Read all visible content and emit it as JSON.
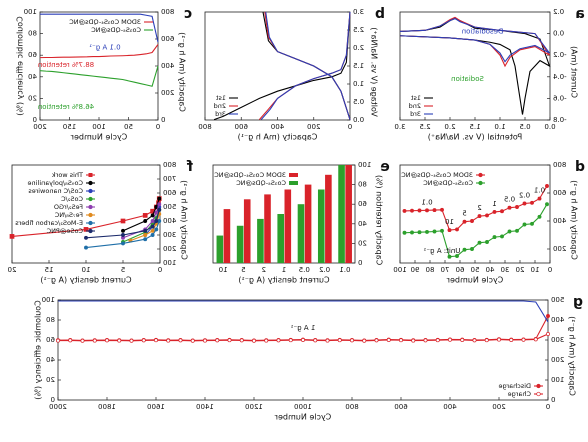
{
  "chart_data": [
    {
      "label": "a",
      "type": "line",
      "xlabel": "Potential (V vs. Na/Na⁺)",
      "ylabel": "Current (mA)",
      "xlim": [
        0,
        3
      ],
      "xticks": [
        {
          "value": 0,
          "label": "0.0"
        },
        0.5,
        {
          "value": 1,
          "label": "1.0"
        },
        1.5,
        {
          "value": 2,
          "label": "2.0"
        },
        2.5,
        {
          "value": 3,
          "label": "3.0"
        }
      ],
      "ylim": [
        -0.8,
        0.2
      ],
      "yticks": [
        -0.8,
        -0.6,
        -0.4,
        -0.2,
        {
          "value": 0,
          "label": "0.0"
        },
        0.2
      ],
      "annotations": [
        "Desodiation",
        "Sodiation"
      ],
      "legend": "lower right",
      "series": [
        {
          "name": "1st",
          "color": "#000000",
          "x": [
            3.0,
            2.5,
            2.0,
            1.5,
            1.2,
            1.0,
            0.8,
            0.7,
            0.6,
            0.55,
            0.5,
            0.4,
            0.2,
            0.01,
            0.2,
            0.5,
            1.0,
            1.5,
            1.8,
            1.9,
            2.0,
            2.2,
            2.5,
            3.0
          ],
          "values": [
            -0.02,
            -0.03,
            -0.04,
            -0.06,
            -0.08,
            -0.1,
            -0.15,
            -0.3,
            -0.6,
            -0.75,
            -0.6,
            -0.35,
            -0.25,
            -0.3,
            -0.05,
            0.0,
            0.03,
            0.05,
            0.12,
            0.14,
            0.12,
            0.06,
            0.03,
            0.02
          ]
        },
        {
          "name": "2nd",
          "color": "#d9232a",
          "x": [
            3.0,
            2.0,
            1.5,
            1.2,
            1.0,
            0.9,
            0.8,
            0.6,
            0.3,
            0.01,
            0.3,
            1.0,
            1.5,
            1.8,
            1.9,
            2.0,
            2.2,
            2.5,
            3.0
          ],
          "values": [
            -0.02,
            -0.04,
            -0.06,
            -0.1,
            -0.2,
            -0.3,
            -0.22,
            -0.15,
            -0.12,
            -0.2,
            0.0,
            0.03,
            0.06,
            0.12,
            0.15,
            0.13,
            0.07,
            0.03,
            0.02
          ]
        },
        {
          "name": "3rd",
          "color": "#2b3fb8",
          "x": [
            3.0,
            2.0,
            1.5,
            1.2,
            1.0,
            0.9,
            0.8,
            0.6,
            0.3,
            0.01,
            0.3,
            1.0,
            1.5,
            1.8,
            1.9,
            2.0,
            2.2,
            2.5,
            3.0
          ],
          "values": [
            -0.02,
            -0.04,
            -0.06,
            -0.1,
            -0.18,
            -0.26,
            -0.2,
            -0.14,
            -0.11,
            -0.18,
            0.0,
            0.03,
            0.06,
            0.11,
            0.14,
            0.12,
            0.07,
            0.03,
            0.02
          ]
        }
      ]
    },
    {
      "label": "b",
      "type": "line",
      "xlabel": "Capacity (mA h g⁻¹)",
      "ylabel": "Voltage (V vs. Na/Na⁺)",
      "xlim": [
        0,
        800
      ],
      "xticks": [
        0,
        200,
        400,
        600,
        800
      ],
      "ylim": [
        0,
        3
      ],
      "yticks": [
        {
          "value": 0,
          "label": "0.0"
        },
        0.5,
        {
          "value": 1,
          "label": "1.0"
        },
        1.5,
        {
          "value": 2,
          "label": "2.0"
        },
        2.5,
        {
          "value": 3,
          "label": "3.0"
        }
      ],
      "legend": "lower right",
      "series": [
        {
          "name": "1st",
          "color": "#000000",
          "x": [
            0,
            20,
            50,
            100,
            200,
            300,
            400,
            500,
            600,
            700,
            750,
            null,
            0,
            50,
            100,
            200,
            300,
            400,
            450,
            480
          ],
          "values": [
            3.0,
            1.6,
            1.3,
            1.2,
            1.1,
            0.95,
            0.8,
            0.6,
            0.35,
            0.1,
            0.01,
            null,
            0.01,
            0.8,
            1.2,
            1.5,
            1.7,
            1.9,
            2.2,
            3.0
          ]
        },
        {
          "name": "2nd",
          "color": "#d9232a",
          "x": [
            0,
            20,
            50,
            100,
            200,
            300,
            400,
            450,
            500,
            null,
            0,
            50,
            100,
            200,
            300,
            400,
            450,
            470
          ],
          "values": [
            3.0,
            1.8,
            1.4,
            1.3,
            1.15,
            0.95,
            0.6,
            0.3,
            0.01,
            null,
            0.01,
            0.8,
            1.2,
            1.5,
            1.7,
            1.9,
            2.3,
            3.0
          ]
        },
        {
          "name": "3rd",
          "color": "#2b3fb8",
          "x": [
            0,
            20,
            50,
            100,
            200,
            300,
            400,
            440,
            490,
            null,
            0,
            50,
            100,
            200,
            300,
            400,
            445,
            465
          ],
          "values": [
            3.0,
            1.8,
            1.4,
            1.3,
            1.15,
            0.95,
            0.6,
            0.3,
            0.01,
            null,
            0.01,
            0.8,
            1.2,
            1.5,
            1.7,
            1.9,
            2.3,
            3.0
          ]
        }
      ]
    },
    {
      "label": "c",
      "type": "line",
      "xlabel": "Cycle Number",
      "ylabel": "Capacity (mA h g⁻¹)",
      "y2label": "Coulombic efficiency (%)",
      "xlim": [
        0,
        200
      ],
      "xticks": [
        0,
        50,
        100,
        150,
        200
      ],
      "ylim": [
        0,
        800
      ],
      "yticks": [
        0,
        200,
        400,
        600,
        800
      ],
      "y2lim": [
        0,
        100
      ],
      "y2ticks": [
        0,
        20,
        40,
        60,
        80,
        100
      ],
      "annotations": [
        "88.7% retention",
        "46.8% retention",
        "0.1 A g⁻¹"
      ],
      "legend": "upper left",
      "x": [
        0,
        10,
        20,
        30,
        40,
        50,
        60,
        70,
        80,
        90,
        100,
        110,
        120,
        130,
        140,
        150,
        160,
        170,
        180,
        190,
        200
      ],
      "series": [
        {
          "name": "3DOM Co₃S₄-QDs@NC",
          "color": "#d9232a",
          "values": [
            560,
            500,
            490,
            485,
            480,
            478,
            476,
            475,
            474,
            472,
            470,
            470,
            468,
            467,
            466,
            465,
            465,
            464,
            463,
            463,
            462
          ]
        },
        {
          "name": "Co₃S₄-QDs@NC",
          "color": "#2ca02c",
          "values": [
            400,
            250,
            260,
            270,
            280,
            290,
            300,
            305,
            310,
            315,
            320,
            325,
            330,
            335,
            340,
            345,
            350,
            355,
            360,
            362,
            365
          ]
        },
        {
          "color": "#2b3fb8",
          "axis": "y2",
          "values": [
            72,
            96,
            97,
            98,
            98,
            98,
            98,
            98,
            98,
            98,
            98,
            98,
            98,
            98,
            98,
            98,
            98,
            98,
            98,
            98,
            98
          ]
        }
      ]
    },
    {
      "label": "d",
      "type": "line",
      "xlabel": "Cycle Number",
      "ylabel": "Capacity (mA h g⁻¹)",
      "xlim": [
        0,
        100
      ],
      "xticks": [
        0,
        10,
        20,
        30,
        40,
        50,
        60,
        70,
        80,
        90,
        100
      ],
      "ylim": [
        100,
        800
      ],
      "yticks": [
        200,
        400,
        600,
        800
      ],
      "annotations": [
        "0.1",
        "0.2",
        "0.5",
        "1",
        "2",
        "5",
        "10",
        "0.1",
        "Unit: A g⁻¹"
      ],
      "legend": "upper right",
      "x": [
        2,
        7,
        12,
        17,
        22,
        27,
        32,
        37,
        42,
        47,
        52,
        57,
        62,
        67,
        72,
        77,
        82,
        87,
        92,
        97
      ],
      "series": [
        {
          "name": "3DOM Co₃S₄-QDs@NC",
          "color": "#d9232a",
          "marker": "circle",
          "values": [
            650,
            560,
            530,
            525,
            500,
            495,
            470,
            465,
            440,
            435,
            400,
            395,
            340,
            335,
            480,
            478,
            476,
            475,
            474,
            472
          ]
        },
        {
          "name": "Co₃S₄-QDs@NC",
          "color": "#2ca02c",
          "marker": "circle",
          "values": [
            520,
            430,
            380,
            375,
            330,
            325,
            290,
            285,
            250,
            245,
            200,
            195,
            150,
            145,
            330,
            325,
            322,
            320,
            318,
            316
          ]
        }
      ]
    },
    {
      "label": "e",
      "type": "bar",
      "xlabel": "Current density (A g⁻¹)",
      "ylabel": "Capacity retention (%)",
      "categories": [
        "0.1",
        "0.2",
        "0.5",
        "1",
        "2",
        "5",
        "10"
      ],
      "ylim": [
        0,
        100
      ],
      "yticks": [
        0,
        20,
        40,
        60,
        80,
        100
      ],
      "legend": "upper right",
      "series": [
        {
          "name": "3DOM Co₃S₄-QDs@NC",
          "color": "#d9232a",
          "values": [
            100,
            90,
            80,
            75,
            70,
            65,
            55
          ]
        },
        {
          "name": "Co₃S₄-QDs@NC",
          "color": "#2ca02c",
          "values": [
            100,
            75,
            60,
            50,
            45,
            38,
            28
          ]
        }
      ]
    },
    {
      "label": "f",
      "type": "line",
      "xlabel": "Current density (A g⁻¹)",
      "ylabel": "Capacity (mA h g⁻¹)",
      "xlim": [
        0,
        20
      ],
      "xticks": [
        0,
        5,
        10,
        15,
        20
      ],
      "ylim": [
        100,
        800
      ],
      "yticks": [
        100,
        200,
        300,
        400,
        500,
        600,
        700,
        800
      ],
      "legend": "upper right",
      "series": [
        {
          "name": "This work",
          "color": "#d9232a",
          "marker": "square",
          "x": [
            0.1,
            0.2,
            0.5,
            1,
            2,
            5,
            10,
            20
          ],
          "values": [
            560,
            530,
            500,
            470,
            440,
            400,
            340,
            290
          ]
        },
        {
          "name": "Co₉S₈/polyaniline",
          "color": "#000000",
          "marker": "circle",
          "x": [
            0.1,
            0.5,
            1,
            2,
            5
          ],
          "values": [
            560,
            500,
            440,
            400,
            330
          ]
        },
        {
          "name": "CoS/C nanowires",
          "color": "#2b3fb8",
          "marker": "circle",
          "x": [
            0.1,
            0.5,
            1,
            2
          ],
          "values": [
            500,
            420,
            360,
            300
          ]
        },
        {
          "name": "CoS₂/C",
          "color": "#2ca02c",
          "marker": "circle",
          "x": [
            0.1,
            0.5,
            1,
            2,
            5
          ],
          "values": [
            480,
            420,
            380,
            320,
            250
          ]
        },
        {
          "name": "FeS₂/rGO",
          "color": "#8e3fb0",
          "marker": "circle",
          "x": [
            0.1,
            0.5,
            1,
            2,
            5
          ],
          "values": [
            520,
            460,
            400,
            340,
            280
          ]
        },
        {
          "name": "Fe₇S₈/NC",
          "color": "#e08a1e",
          "marker": "circle",
          "x": [
            0.1,
            0.5,
            1,
            2,
            4
          ],
          "values": [
            450,
            380,
            330,
            300,
            260
          ]
        },
        {
          "name": "E-MoS₂/carbon fibers",
          "color": "#1f6fa8",
          "marker": "circle",
          "x": [
            0.1,
            0.5,
            1,
            2,
            5,
            10
          ],
          "values": [
            400,
            340,
            300,
            270,
            240,
            210
          ]
        },
        {
          "name": "CoSe@PNC",
          "color": "#1b2a6b",
          "marker": "circle",
          "x": [
            0.1,
            0.5,
            1,
            2,
            5,
            10
          ],
          "values": [
            480,
            400,
            360,
            330,
            300,
            280
          ]
        }
      ]
    },
    {
      "label": "g",
      "type": "line",
      "xlabel": "Cycle Number",
      "ylabel": "Capacity (mA h g⁻¹)",
      "y2label": "Coulombic efficiency (%)",
      "xlim": [
        0,
        2000
      ],
      "xticks": [
        0,
        200,
        400,
        600,
        800,
        1000,
        1200,
        1400,
        1600,
        1800,
        2000
      ],
      "ylim": [
        0,
        500
      ],
      "yticks": [
        0,
        100,
        200,
        300,
        400,
        500
      ],
      "y2lim": [
        0,
        100
      ],
      "y2ticks": [
        0,
        20,
        40,
        60,
        80,
        100
      ],
      "annotations": [
        "1 A g⁻¹"
      ],
      "legend": "lower left",
      "x": [
        0,
        50,
        100,
        150,
        200,
        250,
        300,
        350,
        400,
        450,
        500,
        550,
        600,
        650,
        700,
        750,
        800,
        850,
        900,
        950,
        1000,
        1050,
        1100,
        1150,
        1200,
        1250,
        1300,
        1350,
        1400,
        1450,
        1500,
        1550,
        1600,
        1650,
        1700,
        1750,
        1800,
        1850,
        1900,
        1950,
        2000
      ],
      "series": [
        {
          "name": "Discharge",
          "color": "#d9232a",
          "marker": "circle",
          "values": [
            420,
            305,
            303,
            302,
            304,
            301,
            300,
            302,
            303,
            301,
            300,
            299,
            301,
            302,
            300,
            298,
            300,
            301,
            299,
            300,
            302,
            301,
            300,
            299,
            298,
            300,
            301,
            300,
            299,
            298,
            300,
            299,
            301,
            300,
            298,
            299,
            300,
            299,
            298,
            300,
            299
          ]
        },
        {
          "name": "Charge",
          "color": "#d9232a",
          "marker": "circle",
          "open": true,
          "values": [
            330,
            303,
            301,
            300,
            302,
            299,
            298,
            300,
            301,
            299,
            298,
            297,
            299,
            300,
            298,
            296,
            298,
            299,
            297,
            298,
            300,
            299,
            298,
            297,
            296,
            298,
            299,
            298,
            297,
            296,
            298,
            297,
            299,
            298,
            296,
            297,
            298,
            297,
            296,
            298,
            297
          ]
        },
        {
          "color": "#2b3fb8",
          "axis": "y2",
          "values": [
            78,
            98,
            99,
            99,
            99,
            99,
            99,
            99,
            99,
            99,
            99,
            99,
            99,
            99,
            99,
            99,
            99,
            99,
            99,
            99,
            99,
            99,
            99,
            99,
            99,
            99,
            99,
            99,
            99,
            99,
            99,
            99,
            99,
            99,
            99,
            99,
            99,
            99,
            99,
            99,
            99
          ]
        }
      ]
    }
  ]
}
